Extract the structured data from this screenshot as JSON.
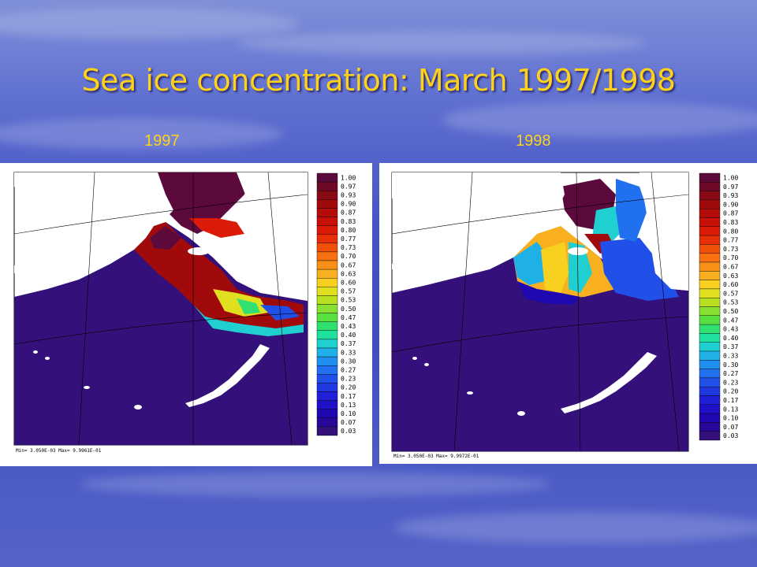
{
  "slide": {
    "title": "Sea ice concentration: March 1997/1998",
    "year_left": "1997",
    "year_right": "1998"
  },
  "colors": {
    "title": "#ffd21a",
    "ocean": "#34117a",
    "land": "#ffffff"
  },
  "maps": [
    {
      "year": "1997",
      "minmax": "Min= 3.050E-03  Max= 9.9961E-01"
    },
    {
      "year": "1998",
      "minmax": "Min= 3.050E-03  Max= 9.9972E-01"
    }
  ],
  "colorbar": {
    "labels": [
      "1.00",
      "0.97",
      "0.93",
      "0.90",
      "0.87",
      "0.83",
      "0.80",
      "0.77",
      "0.73",
      "0.70",
      "0.67",
      "0.63",
      "0.60",
      "0.57",
      "0.53",
      "0.50",
      "0.47",
      "0.43",
      "0.40",
      "0.37",
      "0.33",
      "0.30",
      "0.27",
      "0.23",
      "0.20",
      "0.17",
      "0.13",
      "0.10",
      "0.07",
      "0.03"
    ],
    "colors": [
      "#5c0a3c",
      "#6e0a28",
      "#880a14",
      "#a00a0a",
      "#b40c08",
      "#c81008",
      "#dc1a08",
      "#e83008",
      "#f05008",
      "#f87010",
      "#f89018",
      "#f8b020",
      "#f8d020",
      "#e0e020",
      "#b8e020",
      "#88e030",
      "#58e040",
      "#30e070",
      "#20e0a0",
      "#20d0d0",
      "#20b0e8",
      "#2090f0",
      "#2070f0",
      "#2050e8",
      "#2038e0",
      "#2020d8",
      "#2010c8",
      "#2008b0",
      "#280898",
      "#34117a"
    ]
  }
}
